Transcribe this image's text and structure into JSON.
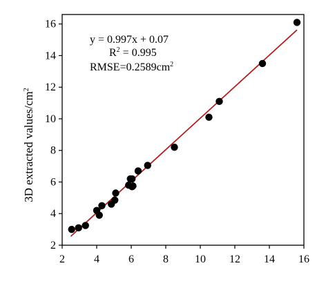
{
  "chart_data": {
    "type": "scatter",
    "title": "",
    "xlabel": "",
    "ylabel": "3D extracted values/cm²",
    "xlim": [
      2,
      16
    ],
    "ylim": [
      2,
      16.6
    ],
    "xticks": [
      2,
      4,
      6,
      8,
      10,
      12,
      14,
      16
    ],
    "yticks": [
      2,
      4,
      6,
      8,
      10,
      12,
      14,
      16
    ],
    "grid": false,
    "legend": "none",
    "annotations": [
      "y = 0.997x + 0.07",
      "R² = 0.995",
      "RMSE=0.2589cm²"
    ],
    "fit": {
      "slope": 0.997,
      "intercept": 0.07,
      "x_range": [
        2.5,
        15.6
      ]
    },
    "colors": {
      "points": "#000000",
      "fit_line": "#b22222",
      "axis": "#000000"
    },
    "series": [
      {
        "x": [
          2.55,
          2.95,
          3.35,
          4.0,
          4.15,
          4.3,
          4.85,
          5.05,
          5.1,
          5.85,
          5.95,
          6.05,
          6.1,
          6.05,
          6.4,
          6.95,
          8.5,
          10.5,
          11.1,
          13.6,
          15.6
        ],
        "y": [
          3.0,
          3.1,
          3.25,
          4.2,
          3.9,
          4.5,
          4.6,
          4.85,
          5.3,
          5.8,
          6.2,
          5.7,
          5.75,
          6.2,
          6.7,
          7.05,
          8.2,
          10.1,
          11.1,
          13.5,
          16.1
        ]
      }
    ]
  }
}
